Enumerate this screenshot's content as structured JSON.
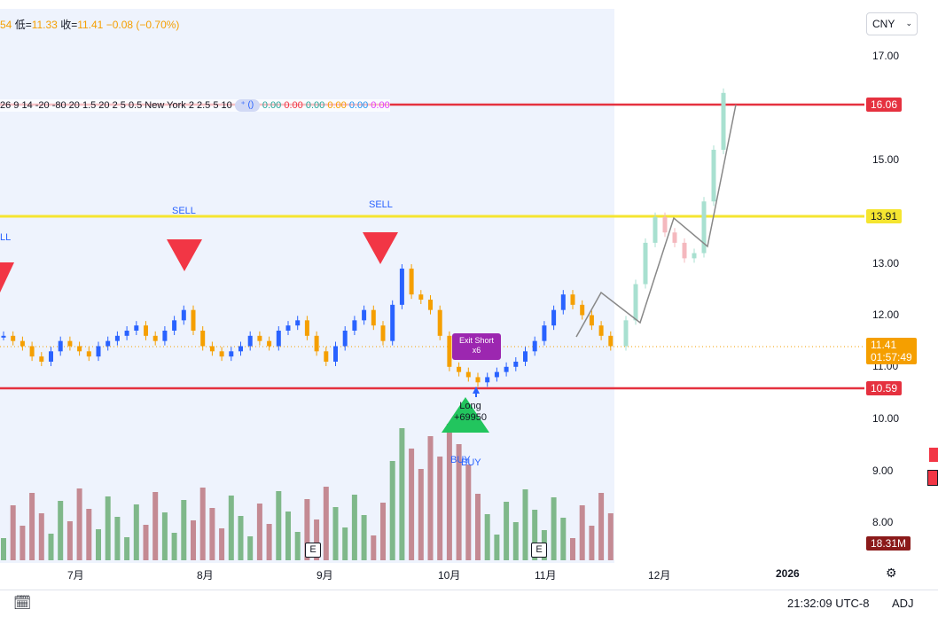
{
  "ohlc": {
    "low_label": "低=",
    "low_value": "11.33",
    "close_label": "收=",
    "close_value": "11.41",
    "change": "−0.08 (−0.70%)",
    "prefix": "54"
  },
  "indicator": {
    "params": "26 9 14 -20 -80 20 1.5 20 2 5 0.5 New York 2 2.5 5 10",
    "values": [
      "0.00",
      "0.00",
      "0.00",
      "0.00",
      "0.00",
      "0.00"
    ]
  },
  "currency": {
    "label": "CNY"
  },
  "price_axis": [
    "17.00",
    "15.00",
    "13.00",
    "12.00",
    "11.00",
    "10.00",
    "9.00",
    "8.00"
  ],
  "levels": {
    "upper_red": "16.06",
    "yellow": "13.91",
    "last_price": "11.41",
    "countdown": "01:57:49",
    "lower_red": "10.59",
    "volume": "18.31M"
  },
  "time_axis": [
    "7月",
    "8月",
    "9月",
    "10月",
    "11月",
    "12月",
    "2026"
  ],
  "signals": {
    "sell1": "SELL",
    "sell2": "SELL",
    "sell0": "LL",
    "buy1": "BUY",
    "buy2": "BUY"
  },
  "exit_label": {
    "line1": "Exit Short",
    "line2": "x6"
  },
  "long_label": {
    "line1": "Long",
    "line2": "+69950"
  },
  "earnings": [
    "E",
    "E"
  ],
  "status": {
    "time": "21:32:09 UTC-8",
    "adj": "ADJ"
  },
  "colors": {
    "up": "#2962ff",
    "down": "#f59f00",
    "vol_up": "#7fb88a",
    "vol_down": "#c48a93",
    "red_line": "#e5313f",
    "yellow_line": "#f5e530",
    "session_bg": "#eef3fd"
  },
  "chart_data": {
    "type": "candlestick",
    "y_range": [
      7.5,
      17.5
    ],
    "closes": [
      11.6,
      11.5,
      11.4,
      11.2,
      11.1,
      11.3,
      11.5,
      11.4,
      11.3,
      11.2,
      11.4,
      11.5,
      11.6,
      11.7,
      11.8,
      11.6,
      11.5,
      11.7,
      11.9,
      12.1,
      11.7,
      11.4,
      11.3,
      11.2,
      11.3,
      11.4,
      11.6,
      11.5,
      11.4,
      11.7,
      11.8,
      11.9,
      11.6,
      11.3,
      11.1,
      11.4,
      11.7,
      11.9,
      12.1,
      11.8,
      11.5,
      12.2,
      12.9,
      12.4,
      12.3,
      12.1,
      11.6,
      11.0,
      10.9,
      10.8,
      10.7,
      10.8,
      10.9,
      11.0,
      11.1,
      11.3,
      11.5,
      11.8,
      12.1,
      12.4,
      12.2,
      12.0,
      11.8,
      11.6,
      11.4
    ],
    "late_closes": [
      11.9,
      12.6,
      13.4,
      13.9,
      13.6,
      13.4,
      13.1,
      13.2,
      14.2,
      15.2,
      16.3
    ]
  }
}
